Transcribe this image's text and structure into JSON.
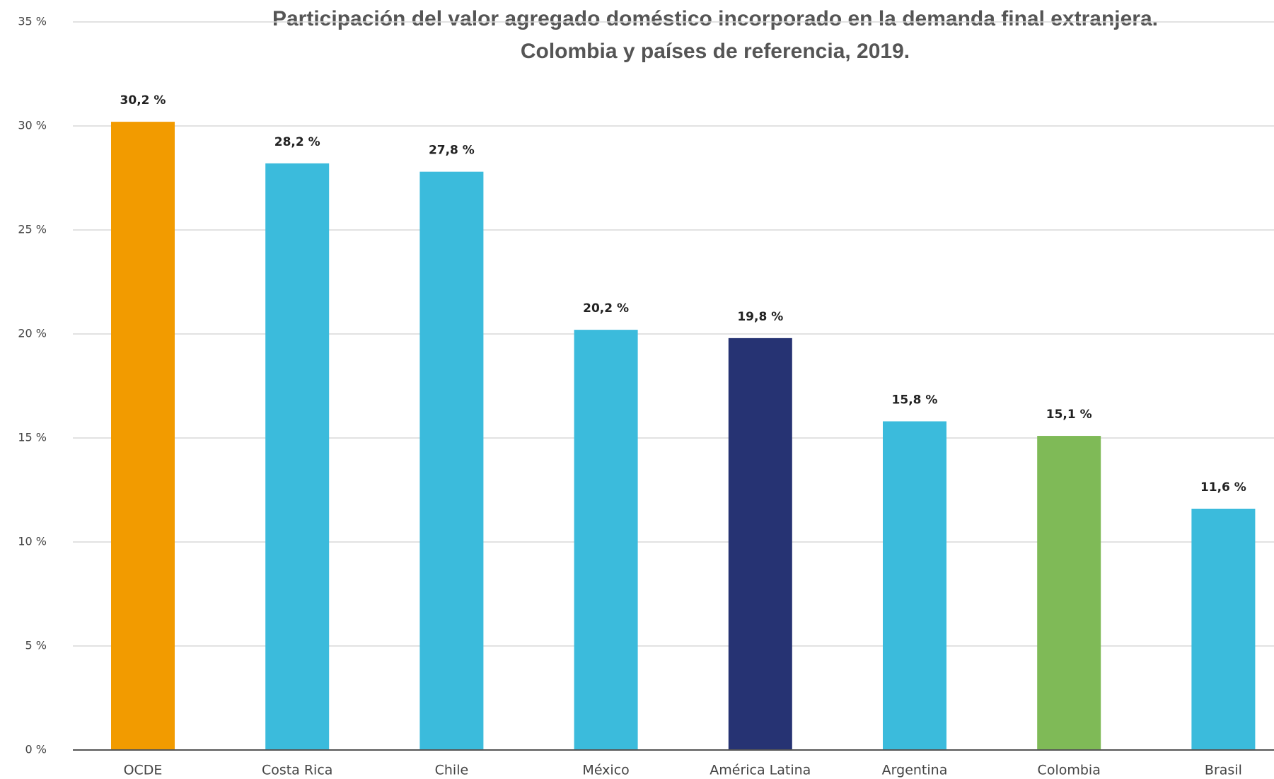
{
  "chart_data": {
    "type": "bar",
    "title": "Participación del valor agregado doméstico incorporado en la demanda final extranjera.",
    "subtitle": "Colombia y países de referencia, 2019.",
    "categories": [
      "OCDE",
      "Costa Rica",
      "Chile",
      "México",
      "América Latina",
      "Argentina",
      "Colombia",
      "Brasil"
    ],
    "values": [
      30.2,
      28.2,
      27.8,
      20.2,
      19.8,
      15.8,
      15.1,
      11.6
    ],
    "value_labels": [
      "30,2 %",
      "28,2 %",
      "27,8 %",
      "20,2 %",
      "19,8 %",
      "15,8 %",
      "15,1 %",
      "11,6 %"
    ],
    "colors": [
      "#f29b00",
      "#3bbbdc",
      "#3bbbdc",
      "#3bbbdc",
      "#263373",
      "#3bbbdc",
      "#7fba57",
      "#3bbbdc"
    ],
    "ylim": [
      0,
      35
    ],
    "yticks": [
      {
        "value": 0,
        "label": "0 %"
      },
      {
        "value": 5,
        "label": "5 %"
      },
      {
        "value": 10,
        "label": "10 %"
      },
      {
        "value": 15,
        "label": "15 %"
      },
      {
        "value": 20,
        "label": "20 %"
      },
      {
        "value": 25,
        "label": "25 %"
      },
      {
        "value": 30,
        "label": "30 %"
      },
      {
        "value": 35,
        "label": "35 %"
      }
    ],
    "grid": true
  }
}
